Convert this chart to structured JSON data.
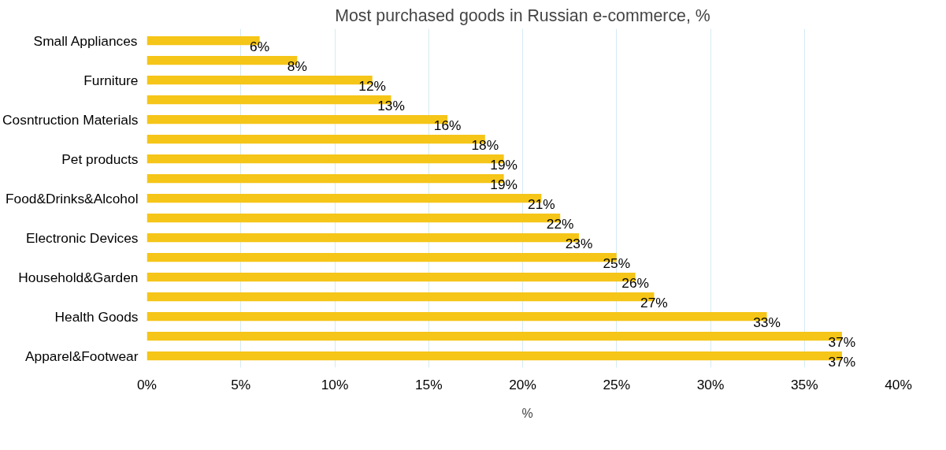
{
  "chart_data": {
    "type": "bar",
    "orientation": "horizontal",
    "title": "Most purchased goods in Russian e-commerce, %",
    "categories": [
      "Small Appliances",
      null,
      "Furniture",
      null,
      "Cosntruction Materials",
      null,
      "Pet products",
      null,
      "Food&Drinks&Alcohol",
      null,
      "Electronic Devices",
      null,
      "Household&Garden",
      null,
      "Health Goods",
      null,
      "Apparel&Footwear"
    ],
    "series": [
      {
        "name": "%",
        "color": "#f5c518",
        "values": [
          6,
          8,
          12,
          13,
          16,
          18,
          19,
          19,
          21,
          22,
          23,
          25,
          26,
          27,
          33,
          37,
          37
        ],
        "value_labels": [
          "6%",
          "8%",
          "12%",
          "13%",
          "16%",
          "18%",
          "19%",
          "19%",
          "21%",
          "22%",
          "23%",
          "25%",
          "26%",
          "27%",
          "33%",
          "37%",
          "37%"
        ]
      }
    ],
    "xlim": [
      0,
      40
    ],
    "xticks": [
      {
        "value": 0,
        "label": "0%"
      },
      {
        "value": 5,
        "label": "5%"
      },
      {
        "value": 10,
        "label": "10%"
      },
      {
        "value": 15,
        "label": "15%"
      },
      {
        "value": 20,
        "label": "20%"
      },
      {
        "value": 25,
        "label": "25%"
      },
      {
        "value": 30,
        "label": "30%"
      },
      {
        "value": 35,
        "label": "35%"
      },
      {
        "value": 40,
        "label": "40%"
      }
    ],
    "grid": "x",
    "legend": "bottom"
  }
}
